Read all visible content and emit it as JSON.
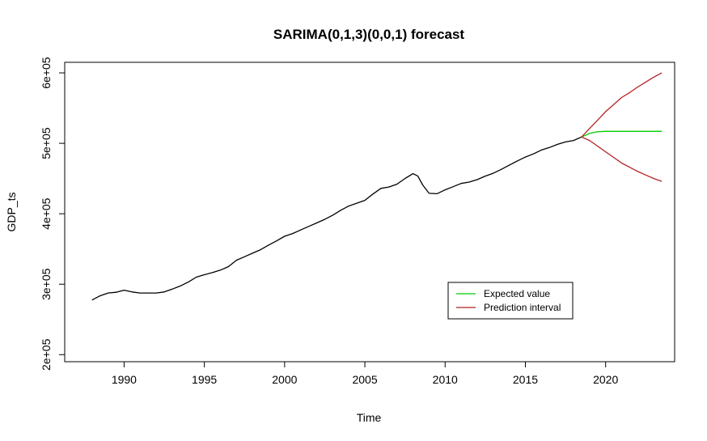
{
  "chart_data": {
    "type": "line",
    "title": "SARIMA(0,1,3)(0,0,1) forecast",
    "xlabel": "Time",
    "ylabel": "GDP_ts",
    "xlim": [
      1986.3,
      2024.3
    ],
    "ylim": [
      190000,
      615000
    ],
    "x_ticks": [
      1990,
      1995,
      2000,
      2005,
      2010,
      2015,
      2020
    ],
    "x_tick_labels": [
      "1990",
      "1995",
      "2000",
      "2005",
      "2010",
      "2015",
      "2020"
    ],
    "y_ticks": [
      200000,
      300000,
      400000,
      500000,
      600000
    ],
    "y_tick_labels": [
      "2e+05",
      "3e+05",
      "4e+05",
      "5e+05",
      "6e+05"
    ],
    "grid": false,
    "legend_position": "bottom-right",
    "legend": [
      {
        "label": "Expected value",
        "color": "#00cc00"
      },
      {
        "label": "Prediction interval",
        "color": "#b22222"
      }
    ],
    "series": [
      {
        "role": "observed",
        "color": "#000000",
        "points": [
          [
            1988.0,
            277500
          ],
          [
            1988.5,
            283500
          ],
          [
            1989.0,
            287500
          ],
          [
            1989.5,
            288500
          ],
          [
            1990.0,
            291500
          ],
          [
            1990.5,
            289000
          ],
          [
            1991.0,
            287500
          ],
          [
            1991.5,
            287500
          ],
          [
            1992.0,
            287500
          ],
          [
            1992.5,
            289000
          ],
          [
            1993.0,
            293000
          ],
          [
            1993.5,
            297500
          ],
          [
            1994.0,
            303000
          ],
          [
            1994.5,
            310000
          ],
          [
            1995.0,
            313500
          ],
          [
            1995.5,
            316500
          ],
          [
            1996.0,
            320000
          ],
          [
            1996.5,
            325000
          ],
          [
            1997.0,
            334000
          ],
          [
            1997.5,
            339000
          ],
          [
            1998.0,
            344000
          ],
          [
            1998.5,
            349000
          ],
          [
            1999.0,
            355500
          ],
          [
            1999.5,
            361500
          ],
          [
            2000.0,
            368000
          ],
          [
            2000.5,
            372000
          ],
          [
            2001.0,
            377000
          ],
          [
            2001.5,
            382000
          ],
          [
            2002.0,
            387000
          ],
          [
            2002.5,
            392000
          ],
          [
            2003.0,
            398000
          ],
          [
            2003.5,
            405000
          ],
          [
            2004.0,
            411000
          ],
          [
            2004.5,
            415000
          ],
          [
            2005.0,
            419000
          ],
          [
            2005.5,
            428000
          ],
          [
            2006.0,
            436000
          ],
          [
            2006.5,
            438000
          ],
          [
            2007.0,
            442000
          ],
          [
            2007.5,
            450000
          ],
          [
            2008.0,
            457000
          ],
          [
            2008.3,
            453500
          ],
          [
            2008.6,
            441000
          ],
          [
            2009.0,
            429000
          ],
          [
            2009.5,
            428500
          ],
          [
            2010.0,
            434000
          ],
          [
            2010.5,
            438500
          ],
          [
            2011.0,
            443000
          ],
          [
            2011.5,
            445000
          ],
          [
            2012.0,
            448500
          ],
          [
            2012.5,
            453500
          ],
          [
            2013.0,
            457500
          ],
          [
            2013.5,
            463000
          ],
          [
            2014.0,
            469000
          ],
          [
            2014.5,
            475000
          ],
          [
            2015.0,
            480500
          ],
          [
            2015.5,
            485000
          ],
          [
            2016.0,
            490500
          ],
          [
            2016.5,
            494000
          ],
          [
            2017.0,
            498500
          ],
          [
            2017.5,
            502000
          ],
          [
            2018.0,
            504000
          ],
          [
            2018.5,
            509000
          ]
        ]
      },
      {
        "role": "expected",
        "color": "#00cc00",
        "points": [
          [
            2018.5,
            509000
          ],
          [
            2019.0,
            514000
          ],
          [
            2019.5,
            516500
          ],
          [
            2020.0,
            517000
          ],
          [
            2021.0,
            517000
          ],
          [
            2022.0,
            517000
          ],
          [
            2023.5,
            517000
          ]
        ]
      },
      {
        "role": "upper",
        "color": "#b22222",
        "points": [
          [
            2018.5,
            509000
          ],
          [
            2019.0,
            521000
          ],
          [
            2019.5,
            533000
          ],
          [
            2020.0,
            545000
          ],
          [
            2020.5,
            555000
          ],
          [
            2021.0,
            565000
          ],
          [
            2021.5,
            572000
          ],
          [
            2022.0,
            580000
          ],
          [
            2022.5,
            587000
          ],
          [
            2023.0,
            594000
          ],
          [
            2023.5,
            600000
          ]
        ]
      },
      {
        "role": "lower",
        "color": "#b22222",
        "points": [
          [
            2018.5,
            509000
          ],
          [
            2019.0,
            504000
          ],
          [
            2019.5,
            496000
          ],
          [
            2020.0,
            488000
          ],
          [
            2020.5,
            480000
          ],
          [
            2021.0,
            472000
          ],
          [
            2021.5,
            466000
          ],
          [
            2022.0,
            460000
          ],
          [
            2022.5,
            455000
          ],
          [
            2023.0,
            450000
          ],
          [
            2023.5,
            446000
          ]
        ]
      }
    ]
  }
}
